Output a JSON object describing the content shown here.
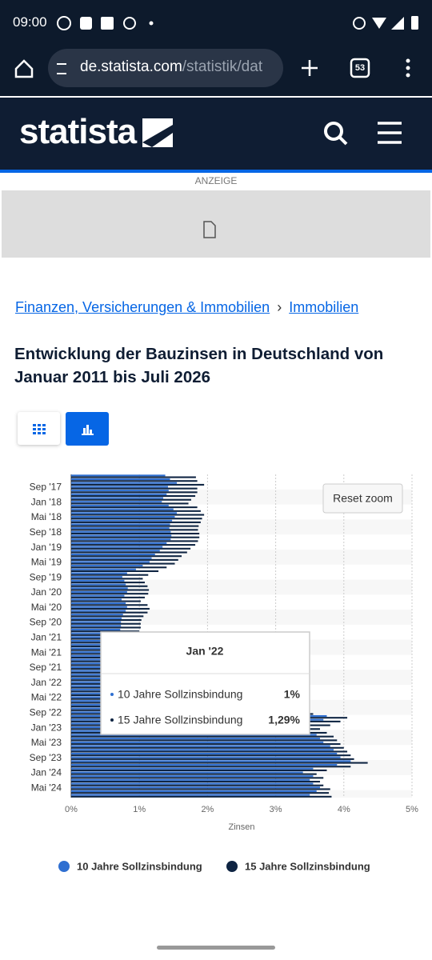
{
  "status_bar": {
    "time": "09:00"
  },
  "browser": {
    "url_host": "de.statista.com",
    "url_path": "/statistik/dat",
    "tab_count": "53"
  },
  "header": {
    "logo": "statista"
  },
  "ad": {
    "label": "ANZEIGE"
  },
  "breadcrumb": {
    "items": [
      "Finanzen, Versicherungen & Immobilien",
      "Immobilien"
    ],
    "separator": "›"
  },
  "page_title": "Entwicklung der Bauzinsen in Deutschland von Januar 2011 bis Juli 2026",
  "chart_data": {
    "type": "bar",
    "orientation": "horizontal",
    "categories": [
      null,
      null,
      null,
      "Sep '17",
      null,
      null,
      null,
      "Jan '18",
      null,
      null,
      null,
      "Mai '18",
      null,
      null,
      null,
      "Sep '18",
      null,
      null,
      null,
      "Jan '19",
      null,
      null,
      null,
      "Mai '19",
      null,
      null,
      null,
      "Sep '19",
      null,
      null,
      null,
      "Jan '20",
      null,
      null,
      null,
      "Mai '20",
      null,
      null,
      null,
      "Sep '20",
      null,
      null,
      null,
      "Jan '21",
      null,
      null,
      null,
      "Mai '21",
      null,
      null,
      null,
      "Sep '21",
      null,
      null,
      null,
      "Jan '22",
      null,
      null,
      null,
      "Mai '22",
      null,
      null,
      null,
      "Sep '22",
      null,
      null,
      null,
      "Jan '23",
      null,
      null,
      null,
      "Mai '23",
      null,
      null,
      null,
      "Sep '23",
      null,
      null,
      null,
      "Jan '24",
      null,
      null,
      null,
      "Mai '24",
      null,
      null
    ],
    "series": [
      {
        "name": "10 Jahre Sollzinsbindung",
        "color": "#2f6fd1",
        "values": [
          1.38,
          1.45,
          1.55,
          1.42,
          1.43,
          1.4,
          1.35,
          1.33,
          1.43,
          1.5,
          1.55,
          1.52,
          1.48,
          1.45,
          1.44,
          1.46,
          1.47,
          1.46,
          1.4,
          1.34,
          1.3,
          1.23,
          1.18,
          1.15,
          1.05,
          0.95,
          0.82,
          0.75,
          0.78,
          0.8,
          0.83,
          0.82,
          0.78,
          0.74,
          0.8,
          0.82,
          0.8,
          0.76,
          0.74,
          0.73,
          0.73,
          0.72,
          0.71,
          0.71,
          0.72,
          0.76,
          0.78,
          0.82,
          0.8,
          0.78,
          0.76,
          0.78,
          0.85,
          0.93,
          0.95,
          1.0,
          1.25,
          1.55,
          2.1,
          2.6,
          3.05,
          2.95,
          2.8,
          3.3,
          3.75,
          3.7,
          3.5,
          3.35,
          3.5,
          3.6,
          3.65,
          3.7,
          3.8,
          3.85,
          3.9,
          3.95,
          4.1,
          3.9,
          3.55,
          3.4,
          3.55,
          3.5,
          3.55,
          3.65,
          3.6,
          3.5
        ]
      },
      {
        "name": "15 Jahre Sollzinsbindung",
        "color": "#0e2442",
        "values": [
          1.83,
          1.85,
          1.95,
          1.85,
          1.85,
          1.82,
          1.76,
          1.72,
          1.85,
          1.9,
          1.95,
          1.92,
          1.9,
          1.87,
          1.86,
          1.88,
          1.88,
          1.86,
          1.82,
          1.75,
          1.7,
          1.62,
          1.57,
          1.52,
          1.4,
          1.28,
          1.13,
          1.05,
          1.08,
          1.12,
          1.14,
          1.13,
          1.08,
          1.02,
          1.12,
          1.15,
          1.12,
          1.06,
          1.03,
          1.02,
          1.02,
          1.0,
          0.99,
          0.99,
          1.0,
          1.04,
          1.06,
          1.1,
          1.08,
          1.06,
          1.04,
          1.06,
          1.13,
          1.22,
          1.24,
          1.29,
          1.55,
          1.85,
          2.4,
          2.9,
          3.3,
          3.2,
          3.05,
          3.55,
          4.05,
          3.95,
          3.8,
          3.65,
          3.75,
          3.85,
          3.9,
          3.95,
          4.0,
          4.05,
          4.1,
          4.15,
          4.35,
          4.1,
          3.75,
          3.6,
          3.7,
          3.65,
          3.7,
          3.8,
          3.78,
          3.82
        ]
      }
    ],
    "xlim": [
      0,
      5
    ],
    "xticks": [
      {
        "value": 0,
        "label": "0%"
      },
      {
        "value": 1,
        "label": "1%"
      },
      {
        "value": 2,
        "label": "2%"
      },
      {
        "value": 3,
        "label": "3%"
      },
      {
        "value": 4,
        "label": "4%"
      },
      {
        "value": 5,
        "label": "5%"
      }
    ],
    "xlabel": "Zinsen",
    "grid": true,
    "legend": "bottom",
    "reset_zoom": "Reset zoom",
    "tooltip": {
      "title": "Jan '22",
      "rows": [
        {
          "name": "10 Jahre Sollzinsbindung",
          "label": "1%"
        },
        {
          "name": "15 Jahre Sollzinsbindung",
          "label": "1,29%"
        }
      ]
    }
  }
}
